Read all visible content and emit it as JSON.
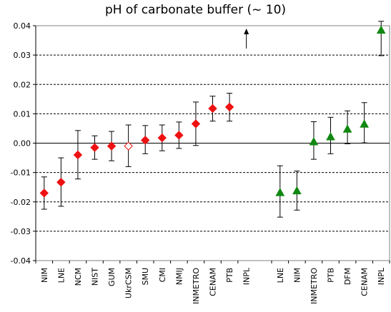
{
  "chart_data": {
    "type": "scatter",
    "title": "pH of carbonate buffer (~ 10)",
    "ylim": [
      -0.04,
      0.04
    ],
    "yticks": [
      "0.04",
      "0.03",
      "0.02",
      "0.01",
      "0.00",
      "-0.01",
      "-0.02",
      "-0.03",
      "-0.04"
    ],
    "grid": "horizontal dashed",
    "colors": {
      "red": "#ee1111",
      "green": "#118811",
      "errorbar": "#000000",
      "open": "#ffffff"
    },
    "groups": [
      {
        "marker": "diamond",
        "points": [
          {
            "label": "NIM",
            "value": -0.017,
            "low": -0.0225,
            "high": -0.0115
          },
          {
            "label": "LNE",
            "value": -0.0133,
            "low": -0.0215,
            "high": -0.005
          },
          {
            "label": "NCM",
            "value": -0.004,
            "low": -0.0122,
            "high": 0.0043
          },
          {
            "label": "NIST",
            "value": -0.0015,
            "low": -0.0055,
            "high": 0.0025
          },
          {
            "label": "GUM",
            "value": -0.001,
            "low": -0.006,
            "high": 0.004
          },
          {
            "label": "UkrCSM",
            "value": -0.001,
            "low": -0.008,
            "high": 0.0062,
            "open": true
          },
          {
            "label": "SMU",
            "value": 0.001,
            "low": -0.0036,
            "high": 0.006
          },
          {
            "label": "CMI",
            "value": 0.0018,
            "low": -0.0026,
            "high": 0.0062
          },
          {
            "label": "NMIJ",
            "value": 0.0027,
            "low": -0.0018,
            "high": 0.0072
          },
          {
            "label": "INMETRO",
            "value": 0.0066,
            "low": -0.0008,
            "high": 0.014
          },
          {
            "label": "CENAM",
            "value": 0.0118,
            "low": 0.0075,
            "high": 0.016
          },
          {
            "label": "PTB",
            "value": 0.0123,
            "low": 0.0075,
            "high": 0.017
          },
          {
            "label": "INPL",
            "value": null,
            "arrow": "up"
          }
        ]
      },
      {
        "marker": "triangle",
        "points": [
          {
            "label": "LNE",
            "value": -0.0168,
            "low": -0.0252,
            "high": -0.0077
          },
          {
            "label": "NIM",
            "value": -0.0162,
            "low": -0.0228,
            "high": -0.0095
          },
          {
            "label": "INMETRO",
            "value": 0.0005,
            "low": -0.0055,
            "high": 0.0073
          },
          {
            "label": "PTB",
            "value": 0.0022,
            "low": -0.0036,
            "high": 0.0088
          },
          {
            "label": "DFM",
            "value": 0.0048,
            "low": -0.0002,
            "high": 0.011
          },
          {
            "label": "CENAM",
            "value": 0.0065,
            "low": 0.0001,
            "high": 0.0138
          },
          {
            "label": "INPL",
            "value": 0.0385,
            "low": 0.0298,
            "high": 0.0415
          }
        ]
      }
    ]
  }
}
